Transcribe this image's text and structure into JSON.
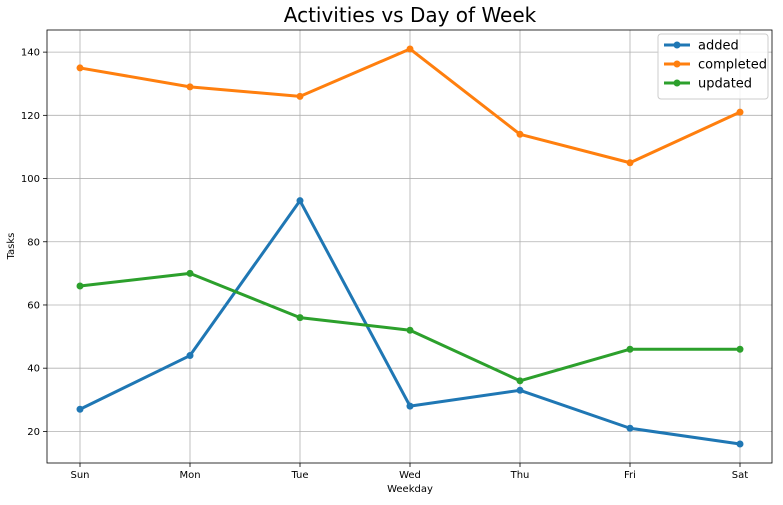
{
  "chart_data": {
    "type": "line",
    "title": "Activities vs Day of Week",
    "xlabel": "Weekday",
    "ylabel": "Tasks",
    "categories": [
      "Sun",
      "Mon",
      "Tue",
      "Wed",
      "Thu",
      "Fri",
      "Sat"
    ],
    "ylim": [
      10,
      147
    ],
    "yticks": [
      20,
      40,
      60,
      80,
      100,
      120,
      140
    ],
    "grid": true,
    "legend_position": "top-right",
    "series": [
      {
        "name": "added",
        "color": "#1f77b4",
        "values": [
          27,
          44,
          93,
          28,
          33,
          21,
          16
        ]
      },
      {
        "name": "completed",
        "color": "#ff7f0e",
        "values": [
          135,
          129,
          126,
          141,
          114,
          105,
          121
        ]
      },
      {
        "name": "updated",
        "color": "#2ca02c",
        "values": [
          66,
          70,
          56,
          52,
          36,
          46,
          46
        ]
      }
    ]
  }
}
